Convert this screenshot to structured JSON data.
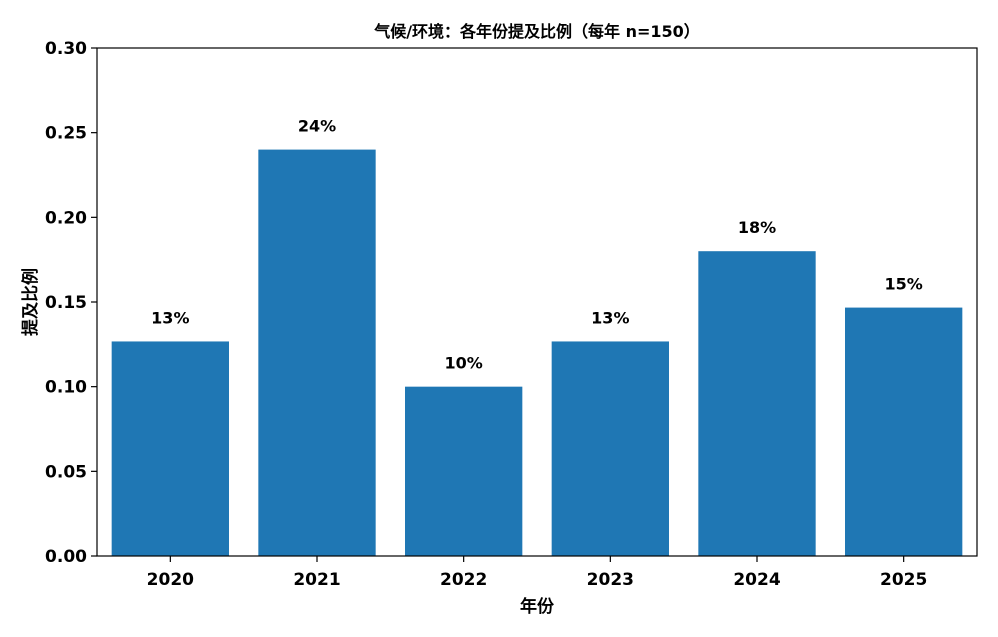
{
  "chart_data": {
    "type": "bar",
    "title": "气候/环境：各年份提及比例（每年 n=150）",
    "xlabel": "年份",
    "ylabel": "提及比例",
    "categories": [
      "2020",
      "2021",
      "2022",
      "2023",
      "2024",
      "2025"
    ],
    "values": [
      0.1267,
      0.24,
      0.1,
      0.1267,
      0.18,
      0.1467
    ],
    "data_labels": [
      "13%",
      "24%",
      "10%",
      "13%",
      "18%",
      "15%"
    ],
    "ylim": [
      0,
      0.3
    ],
    "yticks": [
      "0.00",
      "0.05",
      "0.10",
      "0.15",
      "0.20",
      "0.25",
      "0.30"
    ],
    "grid": false,
    "bar_color": "#1f77b4"
  }
}
